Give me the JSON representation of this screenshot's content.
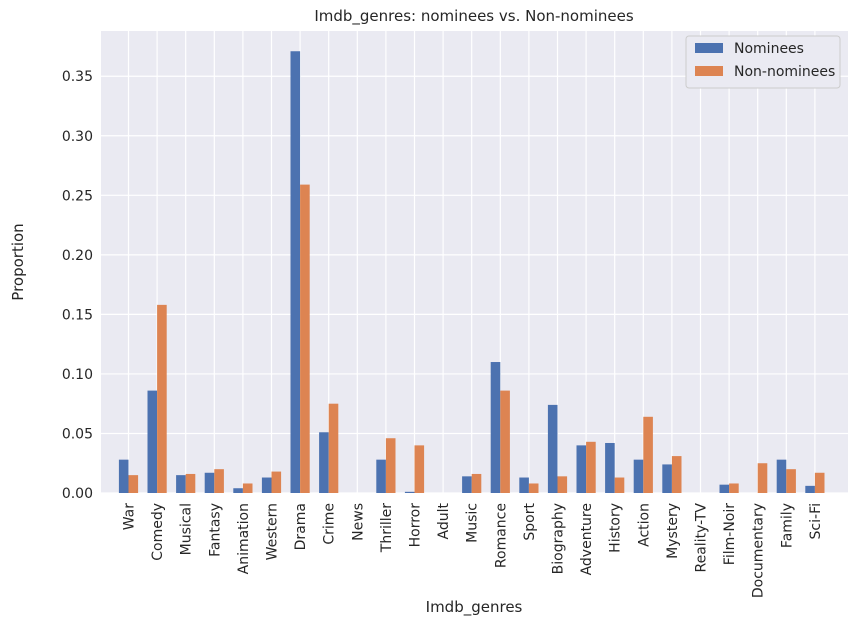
{
  "chart_data": {
    "type": "bar",
    "title": "Imdb_genres: nominees vs. Non-nominees",
    "xlabel": "Imdb_genres",
    "ylabel": "Proportion",
    "ylim": [
      0,
      0.388
    ],
    "yticks": [
      0.0,
      0.05,
      0.1,
      0.15,
      0.2,
      0.25,
      0.3,
      0.35
    ],
    "ytick_labels": [
      "0.00",
      "0.05",
      "0.10",
      "0.15",
      "0.20",
      "0.25",
      "0.30",
      "0.35"
    ],
    "grid": true,
    "legend_position": "top-right",
    "categories": [
      "War",
      "Comedy",
      "Musical",
      "Fantasy",
      "Animation",
      "Western",
      "Drama",
      "Crime",
      "News",
      "Thriller",
      "Horror",
      "Adult",
      "Music",
      "Romance",
      "Sport",
      "Biography",
      "Adventure",
      "History",
      "Action",
      "Mystery",
      "Reality-TV",
      "Film-Noir",
      "Documentary",
      "Family",
      "Sci-Fi"
    ],
    "series": [
      {
        "name": "Nominees",
        "color": "#4c72b0",
        "values": [
          0.028,
          0.086,
          0.015,
          0.017,
          0.004,
          0.013,
          0.371,
          0.051,
          0.0,
          0.028,
          0.001,
          0.0,
          0.014,
          0.11,
          0.013,
          0.074,
          0.04,
          0.042,
          0.028,
          0.024,
          0.0,
          0.007,
          0.0,
          0.028,
          0.006
        ]
      },
      {
        "name": "Non-nominees",
        "color": "#dd8452",
        "values": [
          0.015,
          0.158,
          0.016,
          0.02,
          0.008,
          0.018,
          0.259,
          0.075,
          0.0,
          0.046,
          0.04,
          0.0,
          0.016,
          0.086,
          0.008,
          0.014,
          0.043,
          0.013,
          0.064,
          0.031,
          0.0,
          0.008,
          0.025,
          0.02,
          0.017
        ]
      }
    ]
  }
}
